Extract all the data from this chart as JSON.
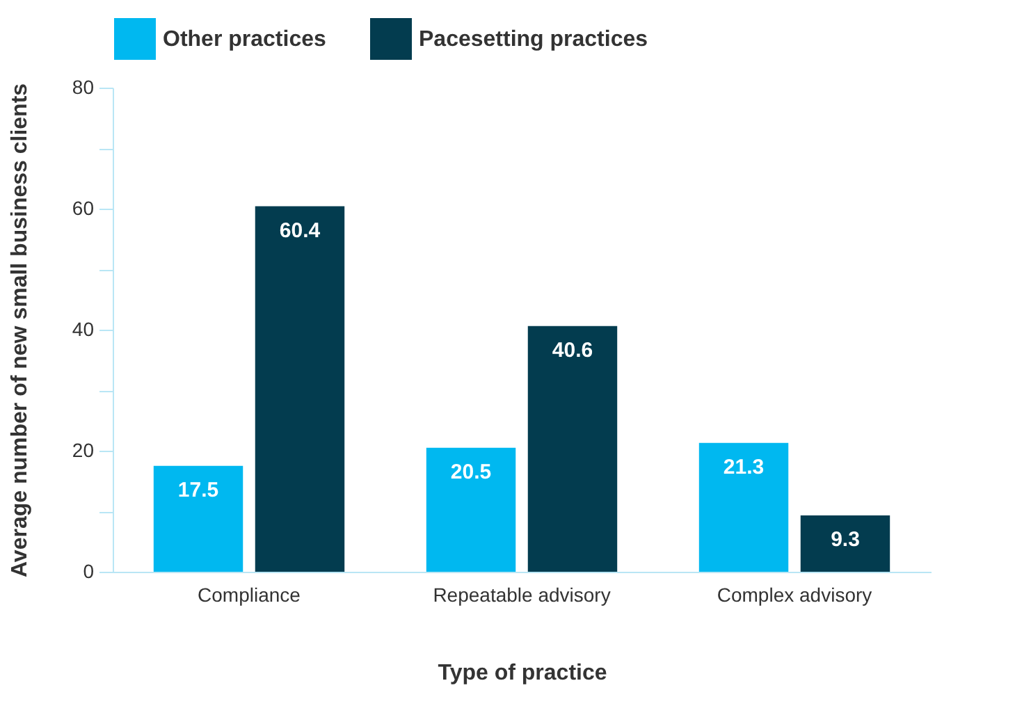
{
  "chart_data": {
    "type": "bar",
    "xlabel": "Type of practice",
    "ylabel": "Average number of new small business clients",
    "categories": [
      "Compliance",
      "Repeatable advisory",
      "Complex advisory"
    ],
    "series": [
      {
        "name": "Other practices",
        "color": "#00b8f0",
        "values": [
          17.5,
          20.5,
          21.3
        ]
      },
      {
        "name": "Pacesetting practices",
        "color": "#033c4f",
        "values": [
          60.4,
          40.6,
          9.3
        ]
      }
    ],
    "ylim": [
      0,
      80
    ],
    "yticks": [
      0,
      {
        "value": 10,
        "label": null
      },
      20,
      {
        "value": 30,
        "label": null
      },
      40,
      {
        "value": 50,
        "label": null
      },
      60,
      {
        "value": 70,
        "label": null
      },
      80
    ],
    "legend": "top",
    "data_labels": true
  }
}
